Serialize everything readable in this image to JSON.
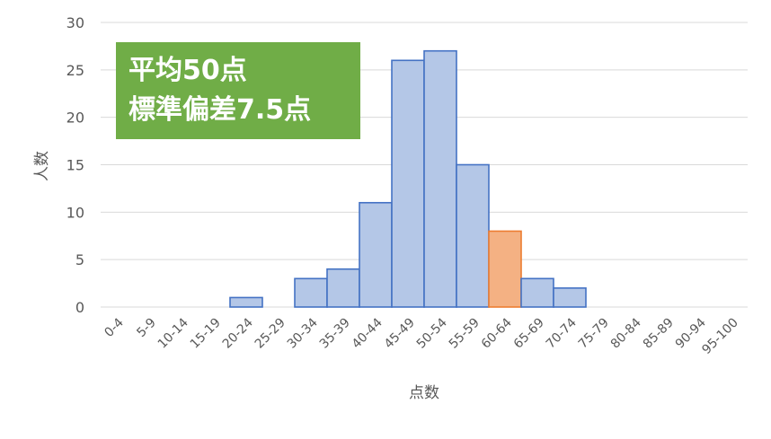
{
  "chart_data": {
    "type": "bar",
    "title": "",
    "xlabel": "点数",
    "ylabel": "人数",
    "ylim": [
      0,
      30
    ],
    "yticks": [
      0,
      5,
      10,
      15,
      20,
      25,
      30
    ],
    "grid": true,
    "categories": [
      "0-4",
      "5-9",
      "10-14",
      "15-19",
      "20-24",
      "25-29",
      "30-34",
      "35-39",
      "40-44",
      "45-49",
      "50-54",
      "55-59",
      "60-64",
      "65-69",
      "70-74",
      "75-79",
      "80-84",
      "85-89",
      "90-94",
      "95-100"
    ],
    "values": [
      0,
      0,
      0,
      0,
      1,
      0,
      3,
      4,
      11,
      26,
      27,
      15,
      8,
      3,
      2,
      0,
      0,
      0,
      0,
      0
    ],
    "highlight_category": "60-64",
    "colors": {
      "bar": "#b4c7e7",
      "bar_edge": "#4472c4",
      "highlight": "#f4b183",
      "highlight_edge": "#ed7d31",
      "annotation_bg": "#70ad47"
    },
    "annotation": {
      "line1": "平均50点",
      "line2": "標準偏差7.5点"
    }
  }
}
